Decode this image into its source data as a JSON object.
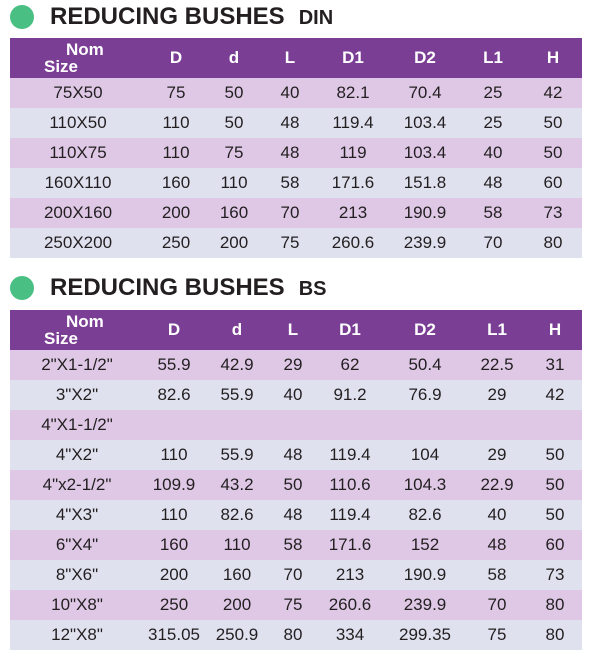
{
  "colors": {
    "header_bg": "#7b3e95",
    "row_purple": "#dec8e6",
    "row_blue": "#dfe1ef",
    "dot": "#49bf83"
  },
  "din": {
    "title": "REDUCING BUSHES",
    "subtitle": "DIN",
    "header": {
      "size_line1": "Nom",
      "size_line2": "Size",
      "cols": [
        "D",
        "d",
        "L",
        "D1",
        "D2",
        "L1",
        "H"
      ]
    },
    "rows": [
      [
        "75X50",
        "75",
        "50",
        "40",
        "82.1",
        "70.4",
        "25",
        "42"
      ],
      [
        "110X50",
        "110",
        "50",
        "48",
        "119.4",
        "103.4",
        "25",
        "50"
      ],
      [
        "110X75",
        "110",
        "75",
        "48",
        "119",
        "103.4",
        "40",
        "50"
      ],
      [
        "160X110",
        "160",
        "110",
        "58",
        "171.6",
        "151.8",
        "48",
        "60"
      ],
      [
        "200X160",
        "200",
        "160",
        "70",
        "213",
        "190.9",
        "58",
        "73"
      ],
      [
        "250X200",
        "250",
        "200",
        "75",
        "260.6",
        "239.9",
        "70",
        "80"
      ]
    ]
  },
  "bs": {
    "title": "REDUCING BUSHES",
    "subtitle": "BS",
    "header": {
      "size_line1": "Nom",
      "size_line2": "Size",
      "cols": [
        "D",
        "d",
        "L",
        "D1",
        "D2",
        "L1",
        "H"
      ]
    },
    "rows": [
      [
        "2\"X1-1/2\"",
        "55.9",
        "42.9",
        "29",
        "62",
        "50.4",
        "22.5",
        "31"
      ],
      [
        "3\"X2\"",
        "82.6",
        "55.9",
        "40",
        "91.2",
        "76.9",
        "29",
        "42"
      ],
      [
        "4\"X1-1/2\"",
        "",
        "",
        "",
        "",
        "",
        "",
        ""
      ],
      [
        "4\"X2\"",
        "110",
        "55.9",
        "48",
        "119.4",
        "104",
        "29",
        "50"
      ],
      [
        "4\"x2-1/2\"",
        "109.9",
        "43.2",
        "50",
        "110.6",
        "104.3",
        "22.9",
        "50"
      ],
      [
        "4\"X3\"",
        "110",
        "82.6",
        "48",
        "119.4",
        "82.6",
        "40",
        "50"
      ],
      [
        "6\"X4\"",
        "160",
        "110",
        "58",
        "171.6",
        "152",
        "48",
        "60"
      ],
      [
        "8\"X6\"",
        "200",
        "160",
        "70",
        "213",
        "190.9",
        "58",
        "73"
      ],
      [
        "10\"X8\"",
        "250",
        "200",
        "75",
        "260.6",
        "239.9",
        "70",
        "80"
      ],
      [
        "12\"X8\"",
        "315.05",
        "250.9",
        "80",
        "334",
        "299.35",
        "75",
        "80"
      ]
    ]
  }
}
